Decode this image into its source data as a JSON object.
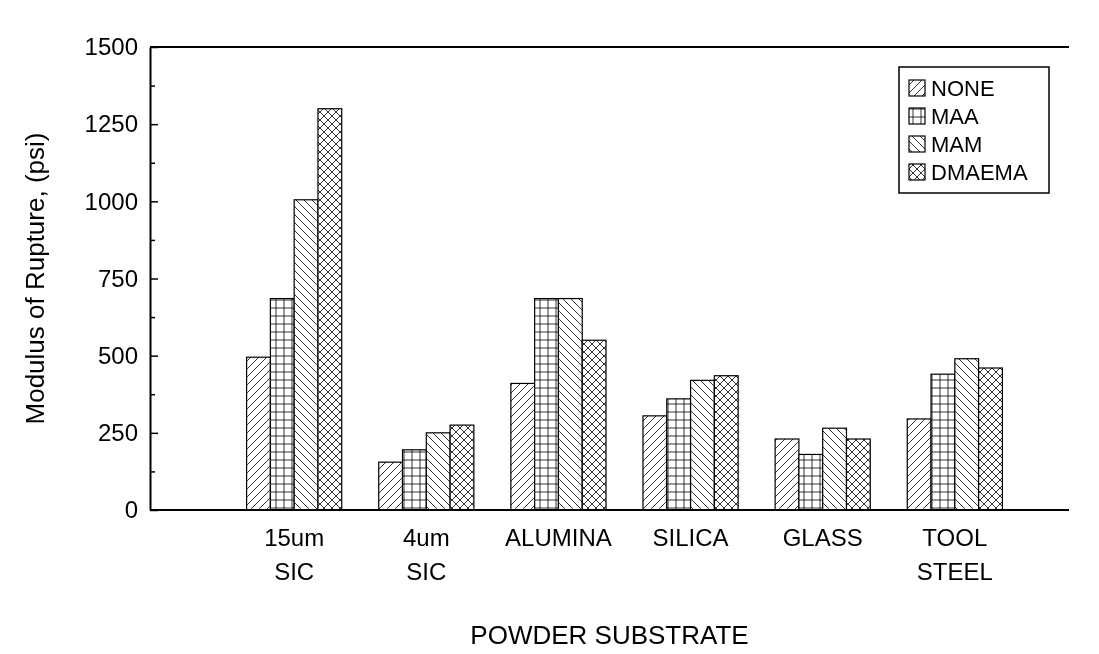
{
  "chart_data": {
    "type": "bar",
    "xlabel": "POWDER SUBSTRATE",
    "ylabel": "Modulus of Rupture, (psi)",
    "categories": [
      "15um SIC",
      "4um SIC",
      "ALUMINA",
      "SILICA",
      "GLASS",
      "TOOL STEEL"
    ],
    "series": [
      {
        "name": "NONE",
        "color": "#000000",
        "values": [
          495,
          155,
          410,
          305,
          230,
          295
        ]
      },
      {
        "name": "MAA",
        "color": "#000000",
        "values": [
          685,
          195,
          685,
          360,
          180,
          440
        ]
      },
      {
        "name": "MAM",
        "color": "#000000",
        "values": [
          1005,
          250,
          685,
          420,
          265,
          490
        ]
      },
      {
        "name": "DMAEMA",
        "color": "#000000",
        "values": [
          1300,
          275,
          550,
          435,
          230,
          460
        ]
      }
    ],
    "ylim": [
      0,
      1500
    ],
    "yticks": [
      0,
      {
        "value": 125,
        "label": null
      },
      250,
      {
        "value": 375,
        "label": null
      },
      500,
      {
        "value": 625,
        "label": null
      },
      750,
      {
        "value": 875,
        "label": null
      },
      1000,
      {
        "value": 1125,
        "label": null
      },
      1250,
      {
        "value": 1375,
        "label": null
      },
      1500
    ],
    "legend": "top right",
    "grid": false
  }
}
